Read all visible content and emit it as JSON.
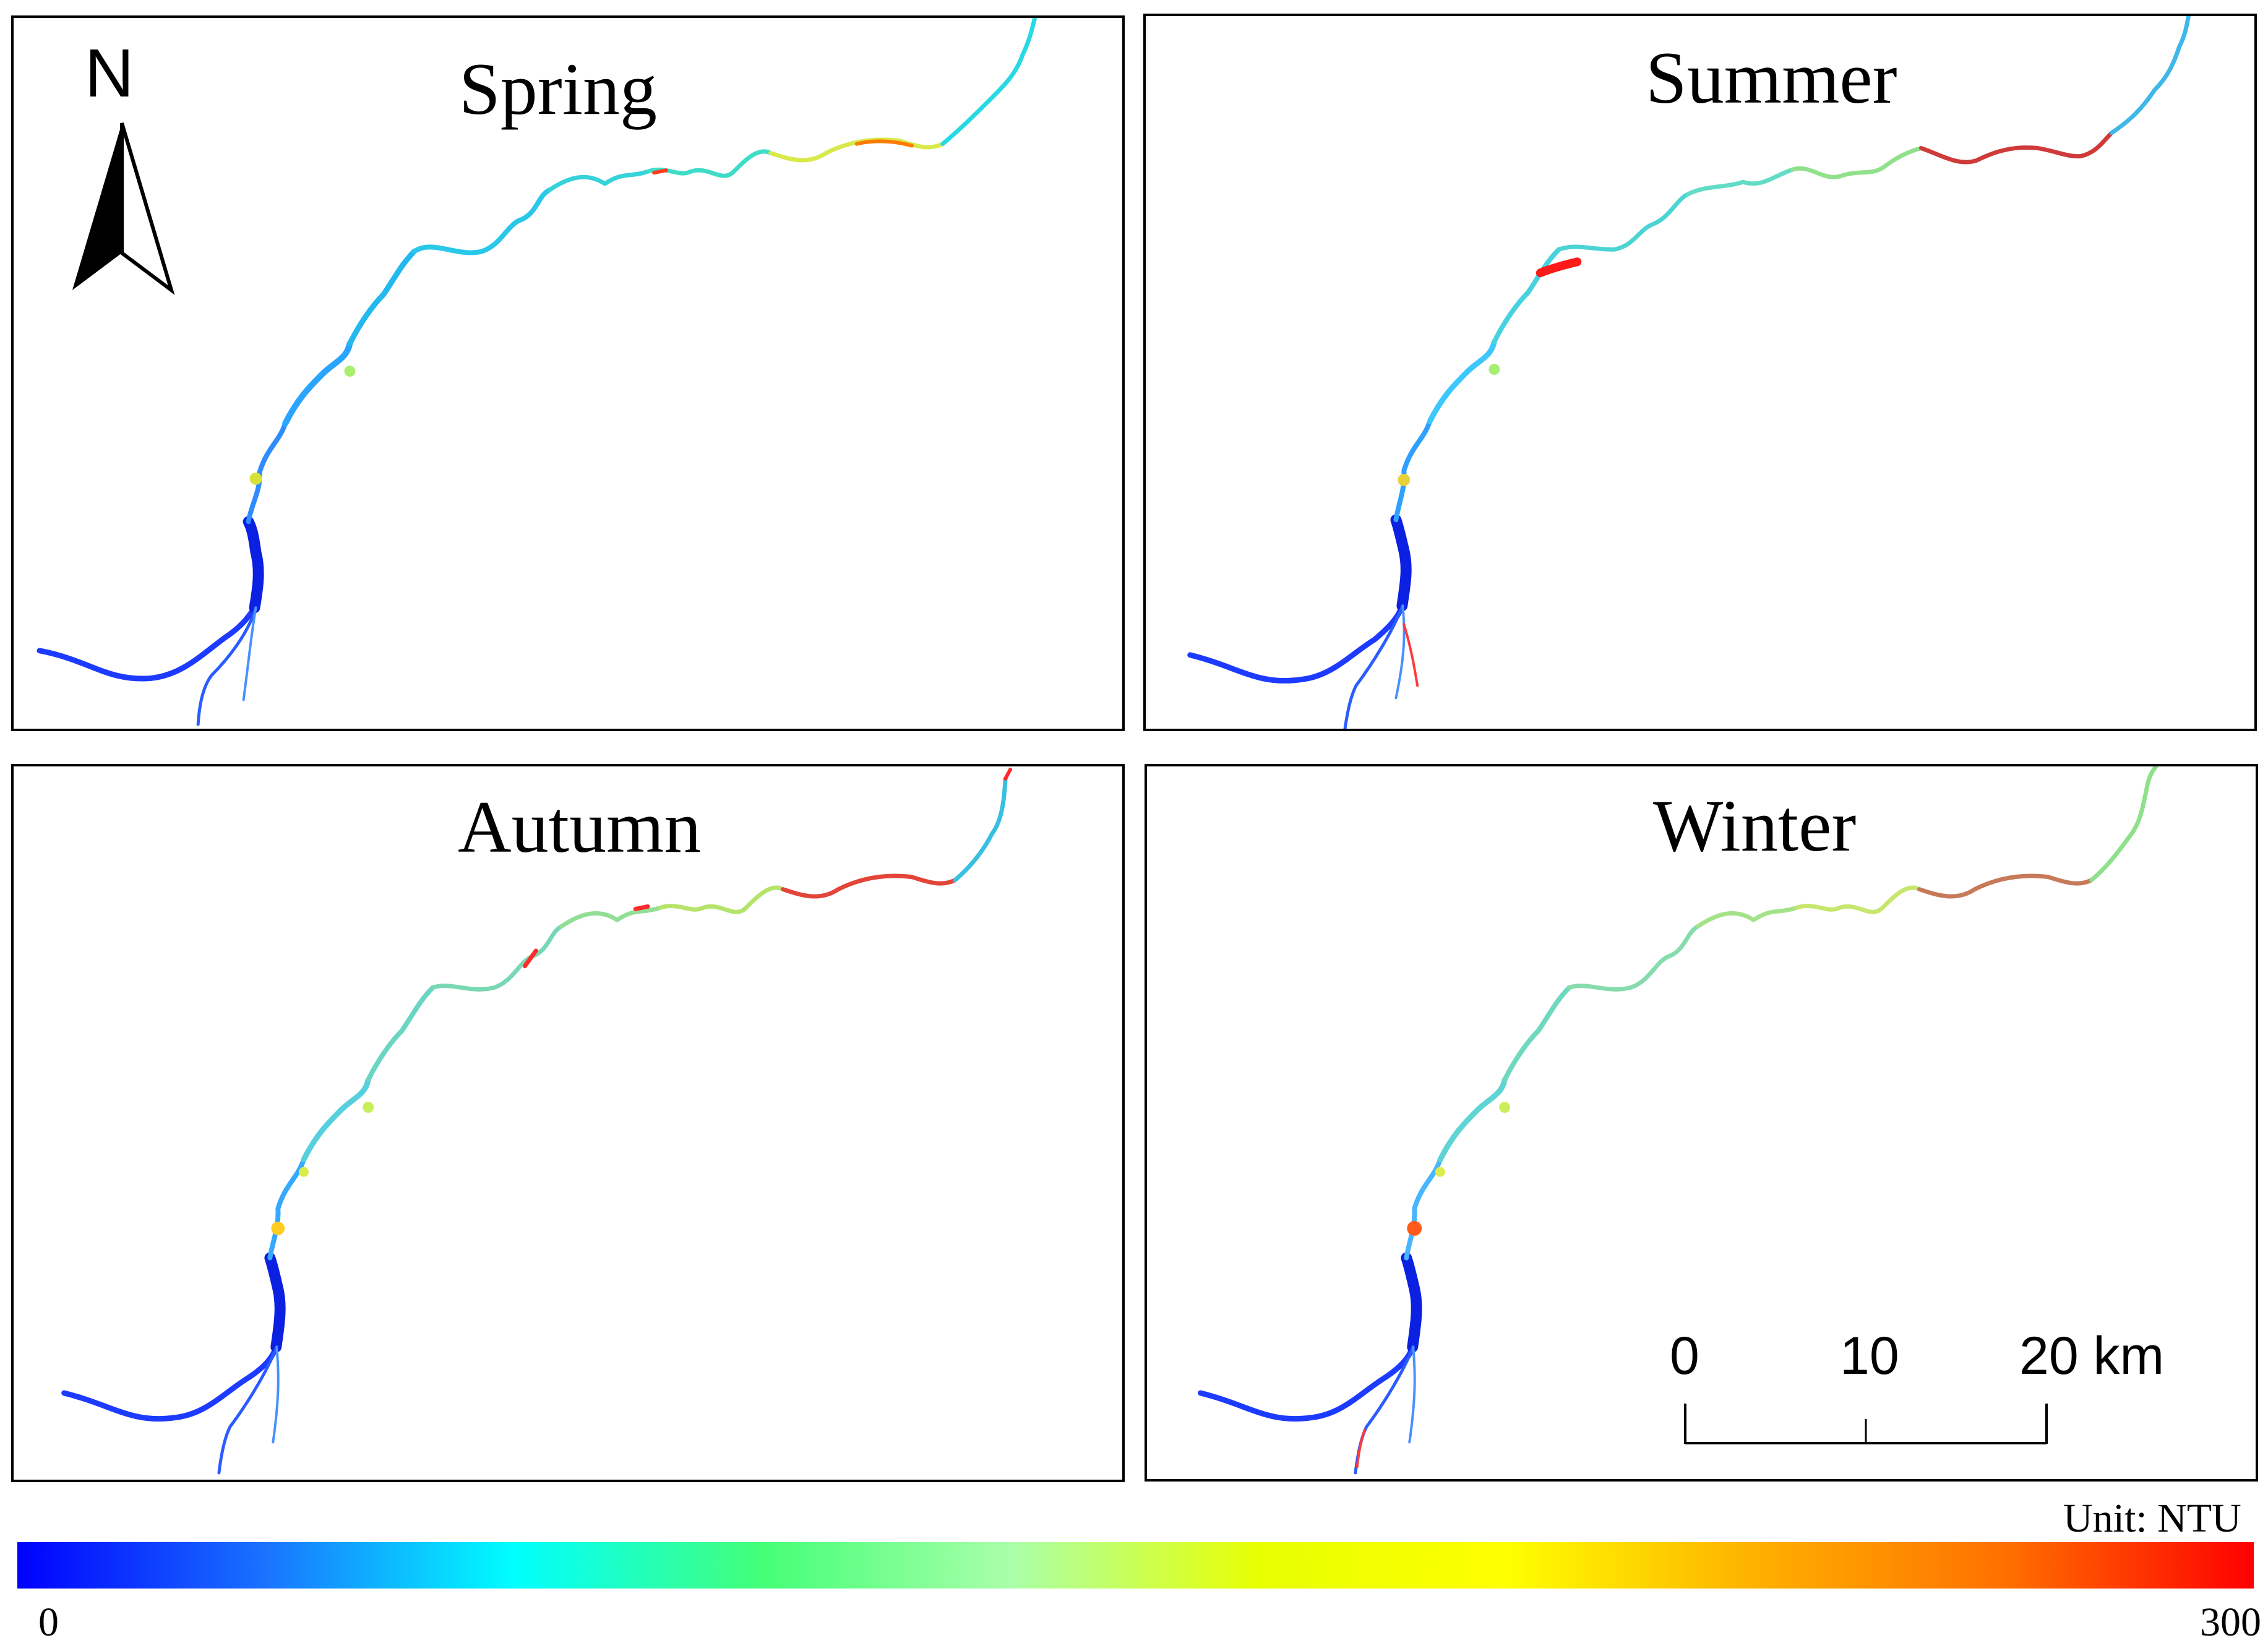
{
  "panels": [
    {
      "title": "Spring"
    },
    {
      "title": "Summer"
    },
    {
      "title": "Autumn"
    },
    {
      "title": "Winter"
    }
  ],
  "north_arrow": {
    "label": "N"
  },
  "scale_bar": {
    "ticks": [
      "0",
      "10",
      "20 km"
    ]
  },
  "legend": {
    "unit": "Unit: NTU",
    "min": "0",
    "max": "300",
    "colors": [
      "#0000ff",
      "#1a73ff",
      "#00ffff",
      "#44ff77",
      "#aaffaa",
      "#e8ff00",
      "#ffff00",
      "#ffb000",
      "#ff7000",
      "#ff0000"
    ]
  }
}
